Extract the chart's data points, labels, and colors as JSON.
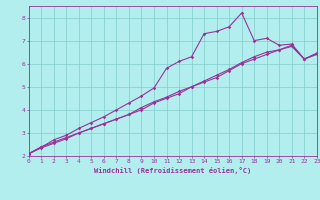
{
  "xlabel": "Windchill (Refroidissement éolien,°C)",
  "xlim": [
    0,
    23
  ],
  "ylim": [
    2,
    8.5
  ],
  "xticks": [
    0,
    1,
    2,
    3,
    4,
    5,
    6,
    7,
    8,
    9,
    10,
    11,
    12,
    13,
    14,
    15,
    16,
    17,
    18,
    19,
    20,
    21,
    22,
    23
  ],
  "yticks": [
    2,
    3,
    4,
    5,
    6,
    7,
    8
  ],
  "background_color": "#b2eeee",
  "grid_color": "#80cccc",
  "line_color": "#993399",
  "line1_y": [
    2.1,
    2.38,
    2.7,
    2.9,
    3.2,
    3.45,
    3.7,
    4.0,
    4.3,
    4.6,
    4.95,
    5.8,
    6.1,
    6.3,
    7.3,
    7.4,
    7.6,
    8.2,
    7.0,
    7.1,
    6.8,
    6.85,
    6.2,
    6.45
  ],
  "line2_y": [
    2.1,
    2.35,
    2.55,
    2.75,
    3.0,
    3.2,
    3.4,
    3.6,
    3.8,
    4.1,
    4.35,
    4.55,
    4.8,
    5.0,
    5.25,
    5.5,
    5.75,
    6.05,
    6.3,
    6.5,
    6.6,
    6.75,
    6.2,
    6.45
  ],
  "line3_y": [
    2.1,
    2.4,
    2.6,
    2.8,
    3.0,
    3.2,
    3.4,
    3.6,
    3.8,
    4.0,
    4.3,
    4.5,
    4.7,
    5.0,
    5.2,
    5.4,
    5.7,
    6.0,
    6.2,
    6.4,
    6.6,
    6.8,
    6.2,
    6.4
  ]
}
